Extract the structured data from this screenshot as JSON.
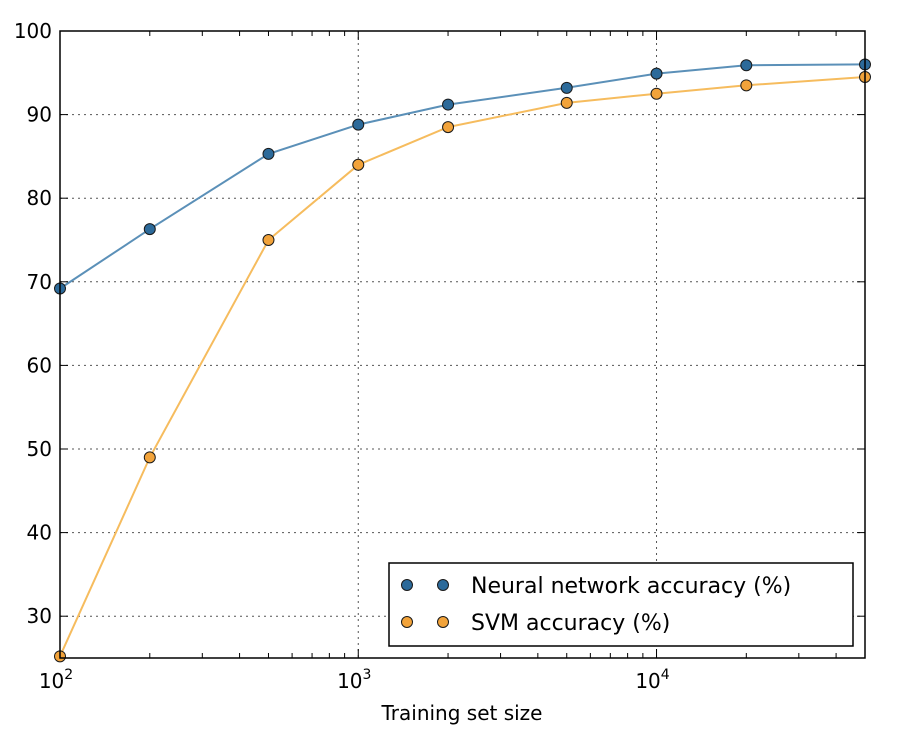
{
  "chart_data": {
    "type": "line",
    "xscale": "log",
    "xlabel": "Training set size",
    "ylabel": "",
    "title": "",
    "xlim": [
      100,
      50000
    ],
    "ylim": [
      25,
      100
    ],
    "grid": true,
    "legend_position": "lower-right",
    "xticks": [
      {
        "value": 100,
        "base": "10",
        "exp": "2"
      },
      {
        "value": 1000,
        "base": "10",
        "exp": "3"
      },
      {
        "value": 10000,
        "base": "10",
        "exp": "4"
      }
    ],
    "yticks": [
      {
        "value": 30,
        "label": "30"
      },
      {
        "value": 40,
        "label": "40"
      },
      {
        "value": 50,
        "label": "50"
      },
      {
        "value": 60,
        "label": "60"
      },
      {
        "value": 70,
        "label": "70"
      },
      {
        "value": 80,
        "label": "80"
      },
      {
        "value": 90,
        "label": "90"
      },
      {
        "value": 100,
        "label": "100"
      }
    ],
    "x": [
      100,
      200,
      500,
      1000,
      2000,
      5000,
      10000,
      20000,
      50000
    ],
    "series": [
      {
        "name": "Neural network accuracy (%)",
        "color": "#2c6a9a",
        "line_color": "#5b90b8",
        "values": [
          69.2,
          76.3,
          85.3,
          88.8,
          91.2,
          93.2,
          94.9,
          95.9,
          96.0
        ]
      },
      {
        "name": "SVM accuracy (%)",
        "color": "#f2a33a",
        "line_color": "#f6bc5e",
        "values": [
          25.2,
          49.0,
          75.0,
          84.0,
          88.5,
          91.4,
          92.5,
          93.5,
          94.5
        ]
      }
    ]
  }
}
